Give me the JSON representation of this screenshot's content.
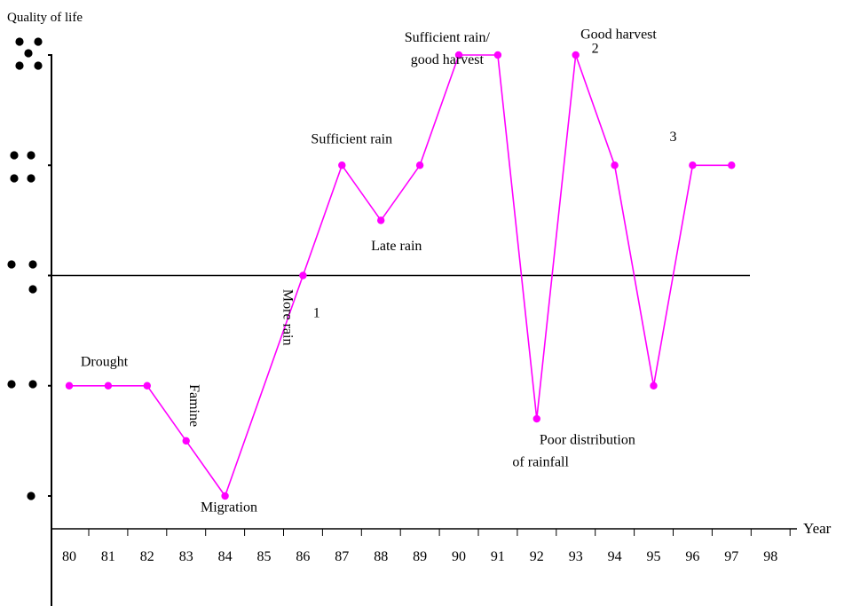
{
  "chart_data": {
    "type": "line",
    "title": "",
    "ylabel": "Quality of life",
    "xlabel": "Year",
    "x_ticks": [
      "80",
      "81",
      "82",
      "83",
      "84",
      "85",
      "86",
      "87",
      "88",
      "89",
      "90",
      "91",
      "92",
      "93",
      "94",
      "95",
      "96",
      "97",
      "98"
    ],
    "y_levels": [
      1,
      2,
      3,
      4,
      5
    ],
    "y_level_symbols": [
      {
        "level": 1,
        "dots": 1
      },
      {
        "level": 2,
        "dots": 2
      },
      {
        "level": 3,
        "dots": 3
      },
      {
        "level": 4,
        "dots": 4
      },
      {
        "level": 5,
        "dots": 5
      }
    ],
    "ylim": [
      0.7,
      5.05
    ],
    "xlim": [
      79.5,
      98
    ],
    "reference_line": 3,
    "series_color": "#ff00ff",
    "series": [
      {
        "name": "",
        "points": [
          {
            "x": 80,
            "y": 2
          },
          {
            "x": 81,
            "y": 2
          },
          {
            "x": 82,
            "y": 2
          },
          {
            "x": 83,
            "y": 1.5
          },
          {
            "x": 84,
            "y": 1
          },
          {
            "x": 86,
            "y": 3
          },
          {
            "x": 87,
            "y": 4
          },
          {
            "x": 88,
            "y": 3.5
          },
          {
            "x": 89,
            "y": 4
          },
          {
            "x": 90,
            "y": 5
          },
          {
            "x": 91,
            "y": 5
          },
          {
            "x": 92,
            "y": 1.7
          },
          {
            "x": 93,
            "y": 5
          },
          {
            "x": 94,
            "y": 4
          },
          {
            "x": 95,
            "y": 2
          },
          {
            "x": 96,
            "y": 4
          },
          {
            "x": 97,
            "y": 4
          }
        ]
      }
    ],
    "annotations": [
      {
        "text": "Drought",
        "x": 80.9,
        "y": 2.18
      },
      {
        "text": "Famine",
        "x": 83.1,
        "y": 1.82,
        "vertical": true
      },
      {
        "text": "Migration",
        "x": 84.1,
        "y": 0.86
      },
      {
        "text": "More rain",
        "x": 85.5,
        "y": 2.62,
        "vertical": true
      },
      {
        "text": "1",
        "x": 86.35,
        "y": 2.62
      },
      {
        "text": "Sufficient rain",
        "x": 87.25,
        "y": 4.2
      },
      {
        "text": "Late rain",
        "x": 88.4,
        "y": 3.23
      },
      {
        "text": "Sufficient rain/",
        "x": 89.7,
        "y": 5.12
      },
      {
        "text": "good harvest",
        "x": 89.7,
        "y": 4.92
      },
      {
        "text": "Good harvest",
        "x": 94.1,
        "y": 5.15
      },
      {
        "text": "2",
        "x": 93.5,
        "y": 5.02
      },
      {
        "text": "3",
        "x": 95.5,
        "y": 4.22
      },
      {
        "text": "Poor distribution",
        "x": 93.3,
        "y": 1.47
      },
      {
        "text": "of rainfall",
        "x": 92.1,
        "y": 1.27
      }
    ]
  }
}
